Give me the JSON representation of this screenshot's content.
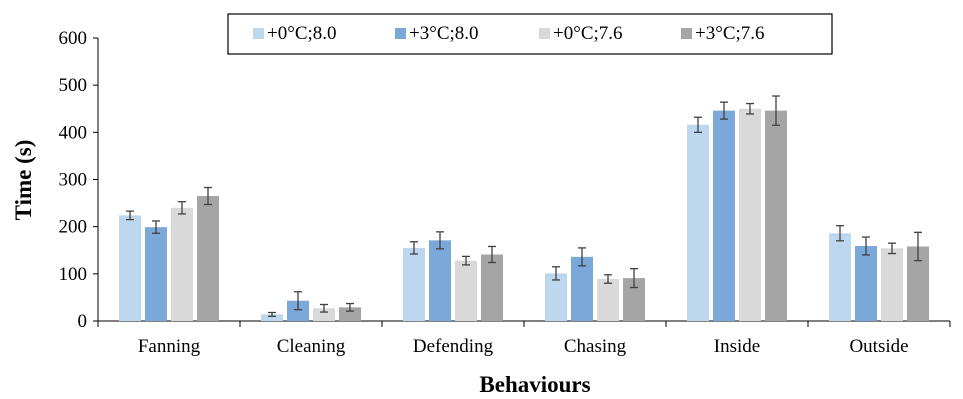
{
  "chart_data": {
    "type": "bar",
    "title": "",
    "xlabel": "Behaviours",
    "ylabel": "Time (s)",
    "ylim": [
      0,
      600
    ],
    "yticks": [
      0,
      100,
      200,
      300,
      400,
      500,
      600
    ],
    "grid": false,
    "legend_position": "top",
    "categories": [
      "Fanning",
      "Cleaning",
      "Defending",
      "Chasing",
      "Inside",
      "Outside"
    ],
    "series": [
      {
        "name": "+0°C;8.0",
        "color": "#bdd7ee",
        "values": [
          224,
          14,
          155,
          101,
          416,
          186
        ],
        "errors": [
          9,
          4,
          13,
          14,
          16,
          16
        ]
      },
      {
        "name": "+3°C;8.0",
        "color": "#7aa8d9",
        "values": [
          199,
          43,
          171,
          136,
          446,
          159
        ],
        "errors": [
          13,
          19,
          18,
          19,
          18,
          19
        ]
      },
      {
        "name": "+0°C;7.6",
        "color": "#d9d9d9",
        "values": [
          240,
          27,
          128,
          89,
          450,
          154
        ],
        "errors": [
          13,
          8,
          9,
          9,
          11,
          11
        ]
      },
      {
        "name": "+3°C;7.6",
        "color": "#a5a5a5",
        "values": [
          265,
          29,
          141,
          91,
          446,
          158
        ],
        "errors": [
          18,
          8,
          17,
          20,
          31,
          30
        ]
      }
    ]
  }
}
